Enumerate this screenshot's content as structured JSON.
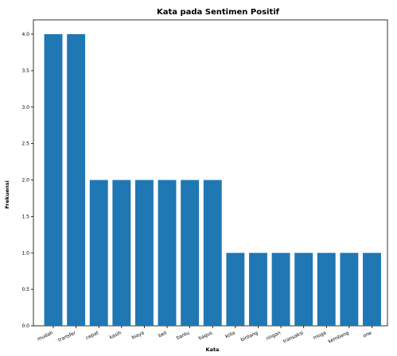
{
  "chart_data": {
    "type": "bar",
    "title": "Kata pada Sentimen Positif",
    "xlabel": "Kata",
    "ylabel": "Frekuensi",
    "categories": [
      "mudah",
      "transfer",
      "cepat",
      "kasih",
      "biaya",
      "beli",
      "bantu",
      "bagus",
      "kota",
      "bintang",
      "ringan",
      "transaksi",
      "moga",
      "kembang",
      "one"
    ],
    "values": [
      4,
      4,
      2,
      2,
      2,
      2,
      2,
      2,
      1,
      1,
      1,
      1,
      1,
      1,
      1
    ],
    "ylim": [
      0,
      4.0
    ],
    "yticks": [
      "0.0",
      "0.5",
      "1.0",
      "1.5",
      "2.0",
      "2.5",
      "3.0",
      "3.5",
      "4.0"
    ],
    "bar_color": "#1f77b4",
    "grid": false,
    "legend": "none"
  }
}
